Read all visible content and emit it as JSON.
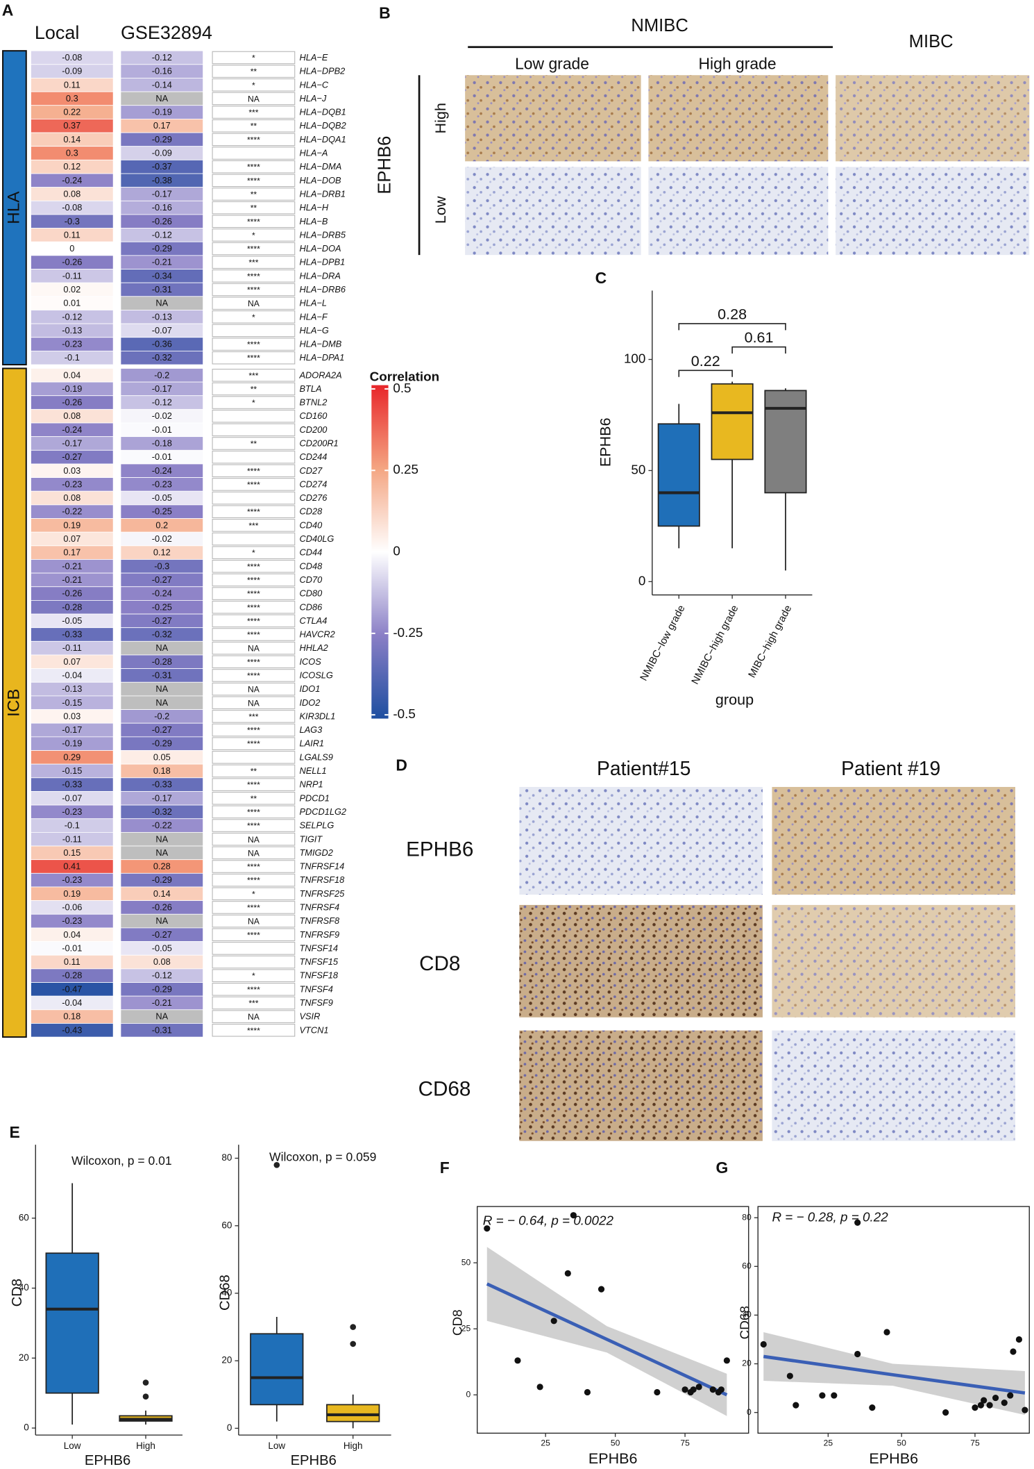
{
  "panels": {
    "labels": [
      "A",
      "B",
      "C",
      "D",
      "E",
      "F",
      "G"
    ]
  },
  "ihc_b": {
    "nmibc": "NMIBC",
    "mibc": "MIBC",
    "grades": [
      "Low grade",
      "High grade"
    ],
    "marker": "EPHB6",
    "levels": [
      "High",
      "Low"
    ]
  },
  "ihc_d": {
    "patients": [
      "Patient#15",
      "Patient #19"
    ],
    "markers": [
      "EPHB6",
      "CD8",
      "CD68"
    ]
  },
  "chart_data": [
    {
      "type": "heatmap",
      "columns": [
        "Local",
        "GSE32894"
      ],
      "na_label": "NA",
      "legend_title": "Correlation",
      "scale_lim": [
        -0.5,
        0.5
      ],
      "scale_ticks": [
        0.5,
        0.25,
        0,
        -0.25,
        -0.5
      ],
      "colors": [
        "#1d4ea0",
        "#8a7fc6",
        "#ffffff",
        "#f4a582",
        "#e8262a"
      ],
      "na_color": "#bebebe",
      "groups": [
        {
          "name": "HLA",
          "color": "#1f73bd",
          "genes": [
            "HLA−E",
            "HLA−DPB2",
            "HLA−C",
            "HLA−J",
            "HLA−DQB1",
            "HLA−DQB2",
            "HLA−DQA1",
            "HLA−A",
            "HLA−DMA",
            "HLA−DOB",
            "HLA−DRB1",
            "HLA−H",
            "HLA−B",
            "HLA−DRB5",
            "HLA−DOA",
            "HLA−DPB1",
            "HLA−DRA",
            "HLA−DRB6",
            "HLA−L",
            "HLA−F",
            "HLA−G",
            "HLA−DMB",
            "HLA−DPA1"
          ],
          "local": [
            -0.08,
            -0.09,
            0.11,
            0.3,
            0.22,
            0.37,
            0.14,
            0.3,
            0.12,
            -0.24,
            0.08,
            -0.08,
            -0.3,
            0.11,
            0,
            -0.26,
            -0.11,
            0.02,
            0.01,
            -0.12,
            -0.13,
            -0.23,
            -0.1
          ],
          "gse": [
            -0.12,
            -0.16,
            -0.14,
            null,
            -0.19,
            0.17,
            -0.29,
            -0.09,
            -0.37,
            -0.38,
            -0.17,
            -0.16,
            -0.26,
            -0.12,
            -0.29,
            -0.21,
            -0.34,
            -0.31,
            null,
            -0.13,
            -0.07,
            -0.36,
            -0.32
          ],
          "signif": [
            "*",
            "**",
            "*",
            "NA",
            "***",
            "**",
            "****",
            null,
            "****",
            "****",
            "**",
            "**",
            "****",
            "*",
            "****",
            "***",
            "****",
            "****",
            "NA",
            "*",
            null,
            "****",
            "****"
          ]
        },
        {
          "name": "ICB",
          "color": "#e8b61e",
          "genes": [
            "ADORA2A",
            "BTLA",
            "BTNL2",
            "CD160",
            "CD200",
            "CD200R1",
            "CD244",
            "CD27",
            "CD274",
            "CD276",
            "CD28",
            "CD40",
            "CD40LG",
            "CD44",
            "CD48",
            "CD70",
            "CD80",
            "CD86",
            "CTLA4",
            "HAVCR2",
            "HHLA2",
            "ICOS",
            "ICOSLG",
            "IDO1",
            "IDO2",
            "KIR3DL1",
            "LAG3",
            "LAIR1",
            "LGALS9",
            "NELL1",
            "NRP1",
            "PDCD1",
            "PDCD1LG2",
            "SELPLG",
            "TIGIT",
            "TMIGD2",
            "TNFRSF14",
            "TNFRSF18",
            "TNFRSF25",
            "TNFRSF4",
            "TNFRSF8",
            "TNFRSF9",
            "TNFSF14",
            "TNFSF15",
            "TNFSF18",
            "TNFSF4",
            "TNFSF9",
            "VSIR",
            "VTCN1"
          ],
          "local": [
            0.04,
            -0.19,
            -0.26,
            0.08,
            -0.24,
            -0.17,
            -0.27,
            0.03,
            -0.23,
            0.08,
            -0.22,
            0.19,
            0.07,
            0.17,
            -0.21,
            -0.21,
            -0.26,
            -0.28,
            -0.05,
            -0.33,
            -0.11,
            0.07,
            -0.04,
            -0.13,
            -0.15,
            0.03,
            -0.17,
            -0.19,
            0.29,
            -0.15,
            -0.33,
            -0.07,
            -0.23,
            -0.1,
            -0.11,
            0.15,
            0.41,
            -0.23,
            0.19,
            -0.06,
            -0.23,
            0.04,
            -0.01,
            0.11,
            -0.28,
            -0.47,
            -0.04,
            0.18,
            -0.43
          ],
          "gse": [
            -0.2,
            -0.17,
            -0.12,
            -0.02,
            -0.01,
            -0.18,
            -0.01,
            -0.24,
            -0.23,
            -0.05,
            -0.25,
            0.2,
            -0.02,
            0.12,
            -0.3,
            -0.27,
            -0.24,
            -0.25,
            -0.27,
            -0.32,
            null,
            -0.28,
            -0.31,
            null,
            null,
            -0.2,
            -0.27,
            -0.29,
            0.05,
            0.18,
            -0.33,
            -0.17,
            -0.32,
            -0.22,
            null,
            null,
            0.28,
            -0.29,
            0.14,
            -0.26,
            null,
            -0.27,
            -0.05,
            0.08,
            -0.12,
            -0.29,
            -0.21,
            null,
            -0.31
          ],
          "signif": [
            "***",
            "**",
            "*",
            null,
            null,
            "**",
            null,
            "****",
            "****",
            null,
            "****",
            "***",
            null,
            "*",
            "****",
            "****",
            "****",
            "****",
            "****",
            "****",
            "NA",
            "****",
            "****",
            "NA",
            "NA",
            "***",
            "****",
            "****",
            null,
            "**",
            "****",
            "**",
            "****",
            "****",
            "NA",
            "NA",
            "****",
            "****",
            "*",
            "****",
            "NA",
            "****",
            null,
            null,
            "*",
            "****",
            "***",
            "NA",
            "****"
          ]
        }
      ]
    },
    {
      "type": "boxplot",
      "categories": [
        "NMIBC−low grade",
        "NMIBC−high grade",
        "MIBC−high grade"
      ],
      "colors": [
        "#1f6fb8",
        "#e8b820",
        "#7f7f7f"
      ],
      "boxes": [
        {
          "min": 15,
          "q1": 25,
          "median": 40,
          "q3": 71,
          "max": 80,
          "outliers": []
        },
        {
          "min": 15,
          "q1": 55,
          "median": 76,
          "q3": 89,
          "max": 90,
          "outliers": []
        },
        {
          "min": 5,
          "q1": 40,
          "median": 78,
          "q3": 86,
          "max": 87,
          "outliers": []
        }
      ],
      "ylim": [
        -6,
        131
      ],
      "yticks": [
        0,
        50,
        100
      ],
      "xlabel": "group",
      "ylabel": "EPHB6",
      "comparisons": [
        {
          "pair": [
            0,
            1
          ],
          "p": 0.22
        },
        {
          "pair": [
            1,
            2
          ],
          "p": 0.61
        },
        {
          "pair": [
            0,
            2
          ],
          "p": 0.28
        }
      ]
    },
    {
      "type": "boxplot",
      "categories": [
        "Low",
        "High"
      ],
      "colors": [
        "#1f6fb8",
        "#e8b820"
      ],
      "boxes": [
        {
          "min": 1,
          "q1": 10,
          "median": 34,
          "q3": 50,
          "max": 70,
          "outliers": []
        },
        {
          "min": 1,
          "q1": 2,
          "median": 2.5,
          "q3": 3.5,
          "max": 5,
          "outliers": [
            9,
            13
          ]
        }
      ],
      "ylim": [
        -2,
        81
      ],
      "yticks": [
        0,
        20,
        40,
        60
      ],
      "xlabel": "EPHB6",
      "ylabel": "CD8",
      "annotation": "Wilcoxon, p = 0.01"
    },
    {
      "type": "boxplot",
      "categories": [
        "Low",
        "High"
      ],
      "colors": [
        "#1f6fb8",
        "#e8b820"
      ],
      "boxes": [
        {
          "min": 2,
          "q1": 7,
          "median": 15,
          "q3": 28,
          "max": 33,
          "outliers": [
            78
          ]
        },
        {
          "min": 0,
          "q1": 2,
          "median": 4,
          "q3": 7,
          "max": 10,
          "outliers": [
            25,
            30
          ]
        }
      ],
      "ylim": [
        -2,
        84
      ],
      "yticks": [
        0,
        20,
        40,
        60,
        80
      ],
      "xlabel": "EPHB6",
      "ylabel": "CD68",
      "annotation": "Wilcoxon, p = 0.059"
    },
    {
      "type": "scatter",
      "x": [
        4,
        35,
        33,
        45,
        28,
        15,
        23,
        40,
        65,
        75,
        77,
        78,
        80,
        85,
        87,
        88,
        90
      ],
      "y": [
        63,
        68,
        46,
        40,
        28,
        13,
        3,
        1,
        1,
        2,
        1,
        2,
        3,
        2,
        1,
        2,
        13
      ],
      "fit": {
        "x": [
          4,
          47,
          90
        ],
        "y": [
          42,
          21,
          0
        ],
        "lower": [
          28,
          16,
          -8
        ],
        "upper": [
          56,
          26,
          8
        ]
      },
      "color": "#111111",
      "fit_color": "#3a5fb5",
      "band_color": "#c4c4c4",
      "xlim": [
        0.5,
        97.8
      ],
      "xticks": [
        25,
        50,
        75
      ],
      "ylim": [
        -14.5,
        71.3
      ],
      "yticks": [
        0,
        25,
        50
      ],
      "xlabel": "EPHB6",
      "ylabel": "CD8",
      "annotation": "R = − 0.64, p = 0.0022"
    },
    {
      "type": "scatter",
      "x": [
        3,
        12,
        14,
        23,
        27,
        35,
        35,
        40,
        45,
        65,
        75,
        77,
        78,
        80,
        82,
        85,
        87,
        88,
        90,
        92
      ],
      "y": [
        28,
        15,
        3,
        7,
        7,
        24,
        78,
        2,
        33,
        0,
        2,
        3,
        5,
        3,
        6,
        4,
        7,
        25,
        30,
        1
      ],
      "fit": {
        "x": [
          3,
          47,
          92
        ],
        "y": [
          23,
          15.5,
          8
        ],
        "lower": [
          13,
          11,
          -1
        ],
        "upper": [
          33,
          20,
          17
        ]
      },
      "color": "#111111",
      "fit_color": "#3a5fb5",
      "band_color": "#c4c4c4",
      "xlim": [
        1.1,
        93.5
      ],
      "xticks": [
        25,
        50,
        75
      ],
      "ylim": [
        -8.5,
        84.6
      ],
      "yticks": [
        0,
        20,
        40,
        60,
        80
      ],
      "xlabel": "EPHB6",
      "ylabel": "CD68",
      "annotation": "R = − 0.28, p = 0.22"
    }
  ]
}
